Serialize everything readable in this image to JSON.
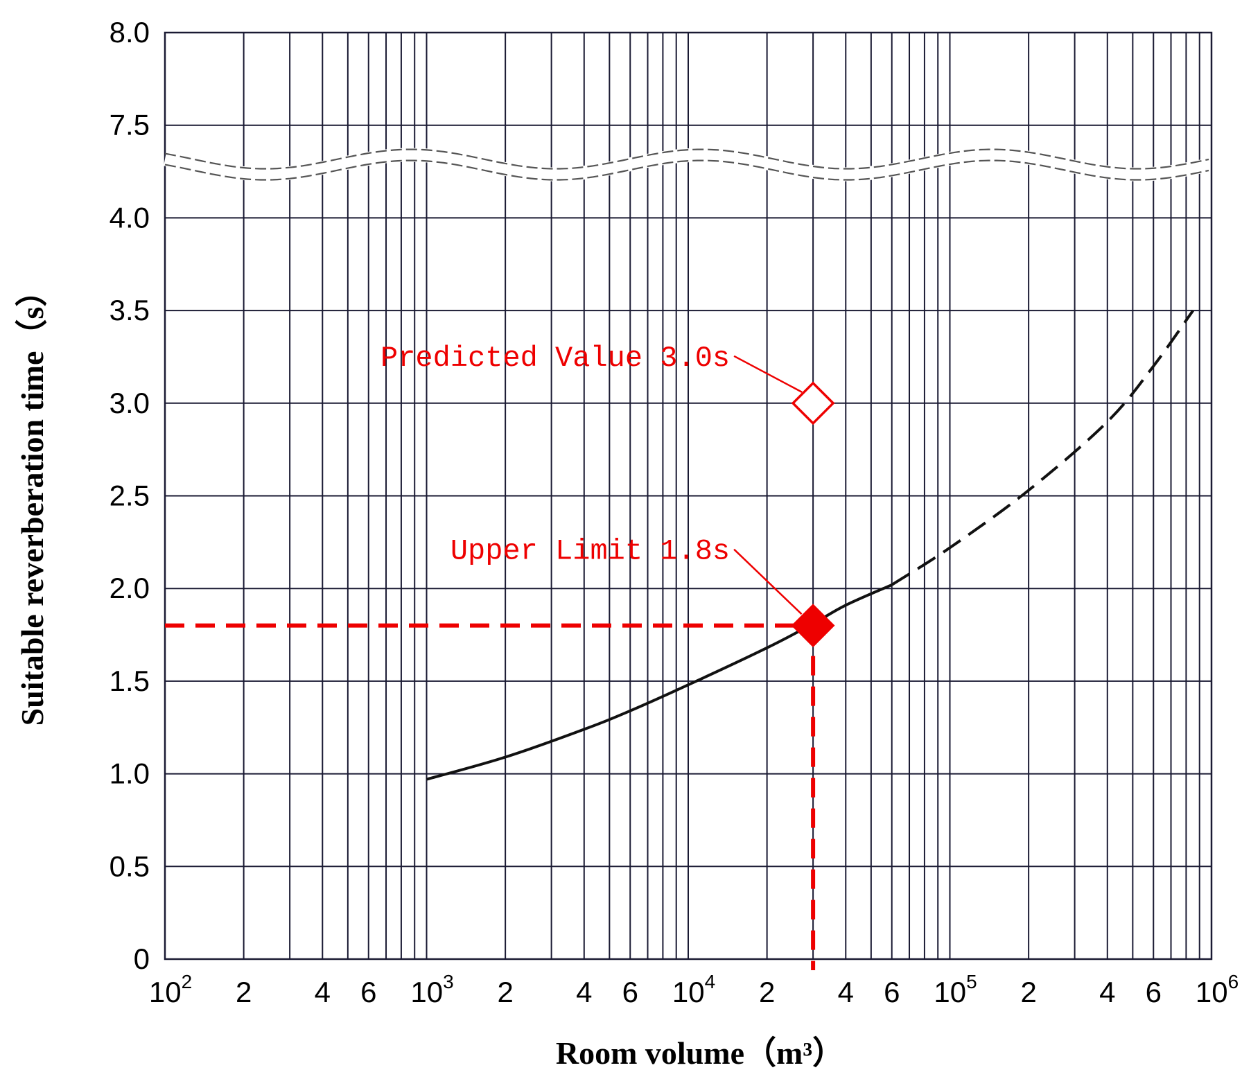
{
  "chart_data": {
    "type": "line",
    "title": "",
    "xlabel": "Room volume（m³）",
    "ylabel": "Suitable reverberation time（s）",
    "x_scale": "log",
    "xlim": [
      100,
      1000000
    ],
    "y_axis_break": true,
    "y_ticks": [
      "0",
      "0.5",
      "1.0",
      "1.5",
      "2.0",
      "2.5",
      "3.0",
      "3.5",
      "4.0",
      "7.5",
      "8.0"
    ],
    "x_ticks": [
      {
        "value": 100,
        "base": "10",
        "exp": "2"
      },
      {
        "value": 200,
        "base": "2",
        "exp": ""
      },
      {
        "value": 400,
        "base": "4",
        "exp": ""
      },
      {
        "value": 600,
        "base": "6",
        "exp": ""
      },
      {
        "value": 1000,
        "base": "10",
        "exp": "3"
      },
      {
        "value": 2000,
        "base": "2",
        "exp": ""
      },
      {
        "value": 4000,
        "base": "4",
        "exp": ""
      },
      {
        "value": 6000,
        "base": "6",
        "exp": ""
      },
      {
        "value": 10000,
        "base": "10",
        "exp": "4"
      },
      {
        "value": 20000,
        "base": "2",
        "exp": ""
      },
      {
        "value": 40000,
        "base": "4",
        "exp": ""
      },
      {
        "value": 60000,
        "base": "6",
        "exp": ""
      },
      {
        "value": 100000,
        "base": "10",
        "exp": "5"
      },
      {
        "value": 200000,
        "base": "2",
        "exp": ""
      },
      {
        "value": 400000,
        "base": "4",
        "exp": ""
      },
      {
        "value": 600000,
        "base": "6",
        "exp": ""
      },
      {
        "value": 1000000,
        "base": "10",
        "exp": "6"
      }
    ],
    "grid": true,
    "series": [
      {
        "style": "solid",
        "color": "#111111",
        "points": [
          [
            1000,
            0.97
          ],
          [
            2000,
            1.09
          ],
          [
            4000,
            1.24
          ],
          [
            6000,
            1.34
          ],
          [
            10000,
            1.48
          ],
          [
            20000,
            1.68
          ],
          [
            30000,
            1.81
          ],
          [
            40000,
            1.91
          ],
          [
            60000,
            2.02
          ]
        ]
      },
      {
        "style": "dashed",
        "color": "#111111",
        "points": [
          [
            60000,
            2.02
          ],
          [
            100000,
            2.22
          ],
          [
            200000,
            2.53
          ],
          [
            400000,
            2.9
          ],
          [
            600000,
            3.2
          ],
          [
            850000,
            3.5
          ]
        ]
      }
    ],
    "annotations": [
      {
        "label": "Predicted Value 3.0s",
        "x": 30000,
        "y": 3.0,
        "marker": "diamond-open",
        "color": "#ee0000"
      },
      {
        "label": "Upper Limit 1.8s",
        "x": 30000,
        "y": 1.8,
        "marker": "diamond-filled",
        "color": "#ee0000",
        "reference_lines": true
      }
    ]
  }
}
